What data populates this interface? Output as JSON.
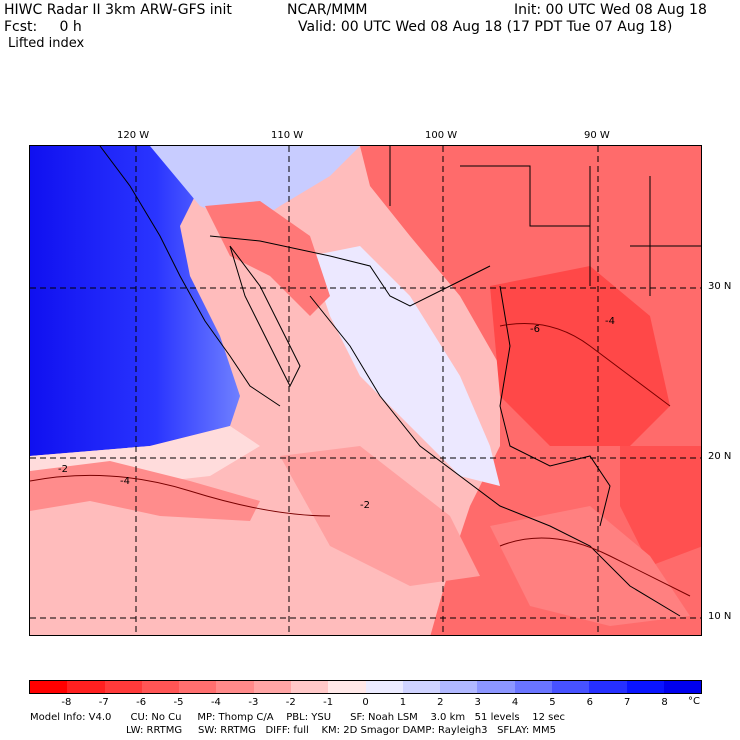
{
  "header": {
    "model": "HIWC Radar II 3km ARW-GFS init",
    "org": "NCAR/MMM",
    "init": "Init: 00 UTC Wed 08 Aug 18",
    "fcst": "Fcst:     0 h",
    "valid": "Valid: 00 UTC Wed 08 Aug 18 (17 PDT Tue 07 Aug 18)",
    "field": "Lifted index"
  },
  "map": {
    "lon_labels": [
      "120 W",
      "110 W",
      "100 W",
      "90 W"
    ],
    "lat_labels": [
      "30 N",
      "20 N",
      "10 N"
    ],
    "contour_labels": [
      "-2",
      "-4",
      "-6"
    ]
  },
  "colorbar": {
    "labels": [
      "-8",
      "-7",
      "-6",
      "-5",
      "-4",
      "-3",
      "-2",
      "-1",
      "0",
      "1",
      "2",
      "3",
      "4",
      "5",
      "6",
      "7",
      "8"
    ],
    "unit": "°C",
    "colors": [
      "#ff0000",
      "#ff2020",
      "#ff3a3a",
      "#ff5555",
      "#ff6f6f",
      "#ff8a8a",
      "#ffa5a5",
      "#ffc8c8",
      "#ffe8e8",
      "#ebebff",
      "#cfd3ff",
      "#b0b8ff",
      "#8c96ff",
      "#6a75ff",
      "#4752ff",
      "#2630ff",
      "#0a14ff",
      "#0000ee"
    ]
  },
  "info": {
    "line1": "Model Info: V4.0      CU: No Cu     MP: Thomp C/A    PBL: YSU      SF: Noah LSM    3.0 km   51 levels    12 sec",
    "line2": "LW: RRTMG     SW: RRTMG   DIFF: full    KM: 2D Smagor DAMP: Rayleigh3   SFLAY: MM5"
  }
}
